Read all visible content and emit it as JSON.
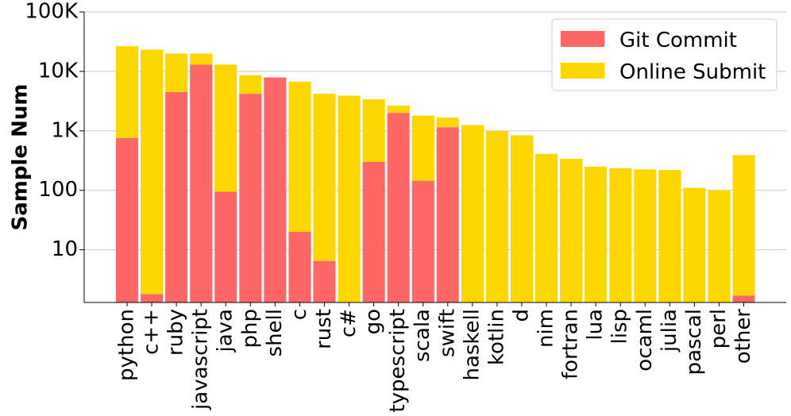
{
  "chart_data": {
    "type": "bar",
    "stacked": true,
    "log_scale_y": true,
    "title": "",
    "xlabel": "",
    "ylabel": "Sample Num",
    "ylim": [
      1.3,
      100000
    ],
    "y_ticks": [
      10,
      100,
      1000,
      10000,
      100000
    ],
    "y_tick_labels": [
      "10",
      "100",
      "1K",
      "10K",
      "100K"
    ],
    "grid_y": true,
    "legend_position": "top-right",
    "categories": [
      "python",
      "c++",
      "ruby",
      "javascript",
      "java",
      "php",
      "shell",
      "c",
      "rust",
      "c#",
      "go",
      "typescript",
      "scala",
      "swift",
      "haskell",
      "kotlin",
      "d",
      "nim",
      "fortran",
      "lua",
      "lisp",
      "ocaml",
      "julia",
      "pascal",
      "perl",
      "other"
    ],
    "series": [
      {
        "name": "Git Commit",
        "color": "#ff6666",
        "values": [
          760,
          1.8,
          4500,
          13000,
          95,
          4200,
          7900,
          20,
          6.5,
          0,
          300,
          2000,
          145,
          1150,
          0,
          0,
          0,
          0,
          0,
          0,
          0,
          0,
          0,
          0,
          0,
          1.7
        ]
      },
      {
        "name": "Online Submit",
        "color": "#ffd700",
        "values": [
          25740,
          23198,
          15500,
          7000,
          12905,
          4400,
          0,
          6680,
          4193.5,
          3900,
          3100,
          650,
          1655,
          520,
          1250,
          990,
          840,
          410,
          340,
          250,
          235,
          225,
          220,
          110,
          100,
          388
        ]
      }
    ]
  }
}
